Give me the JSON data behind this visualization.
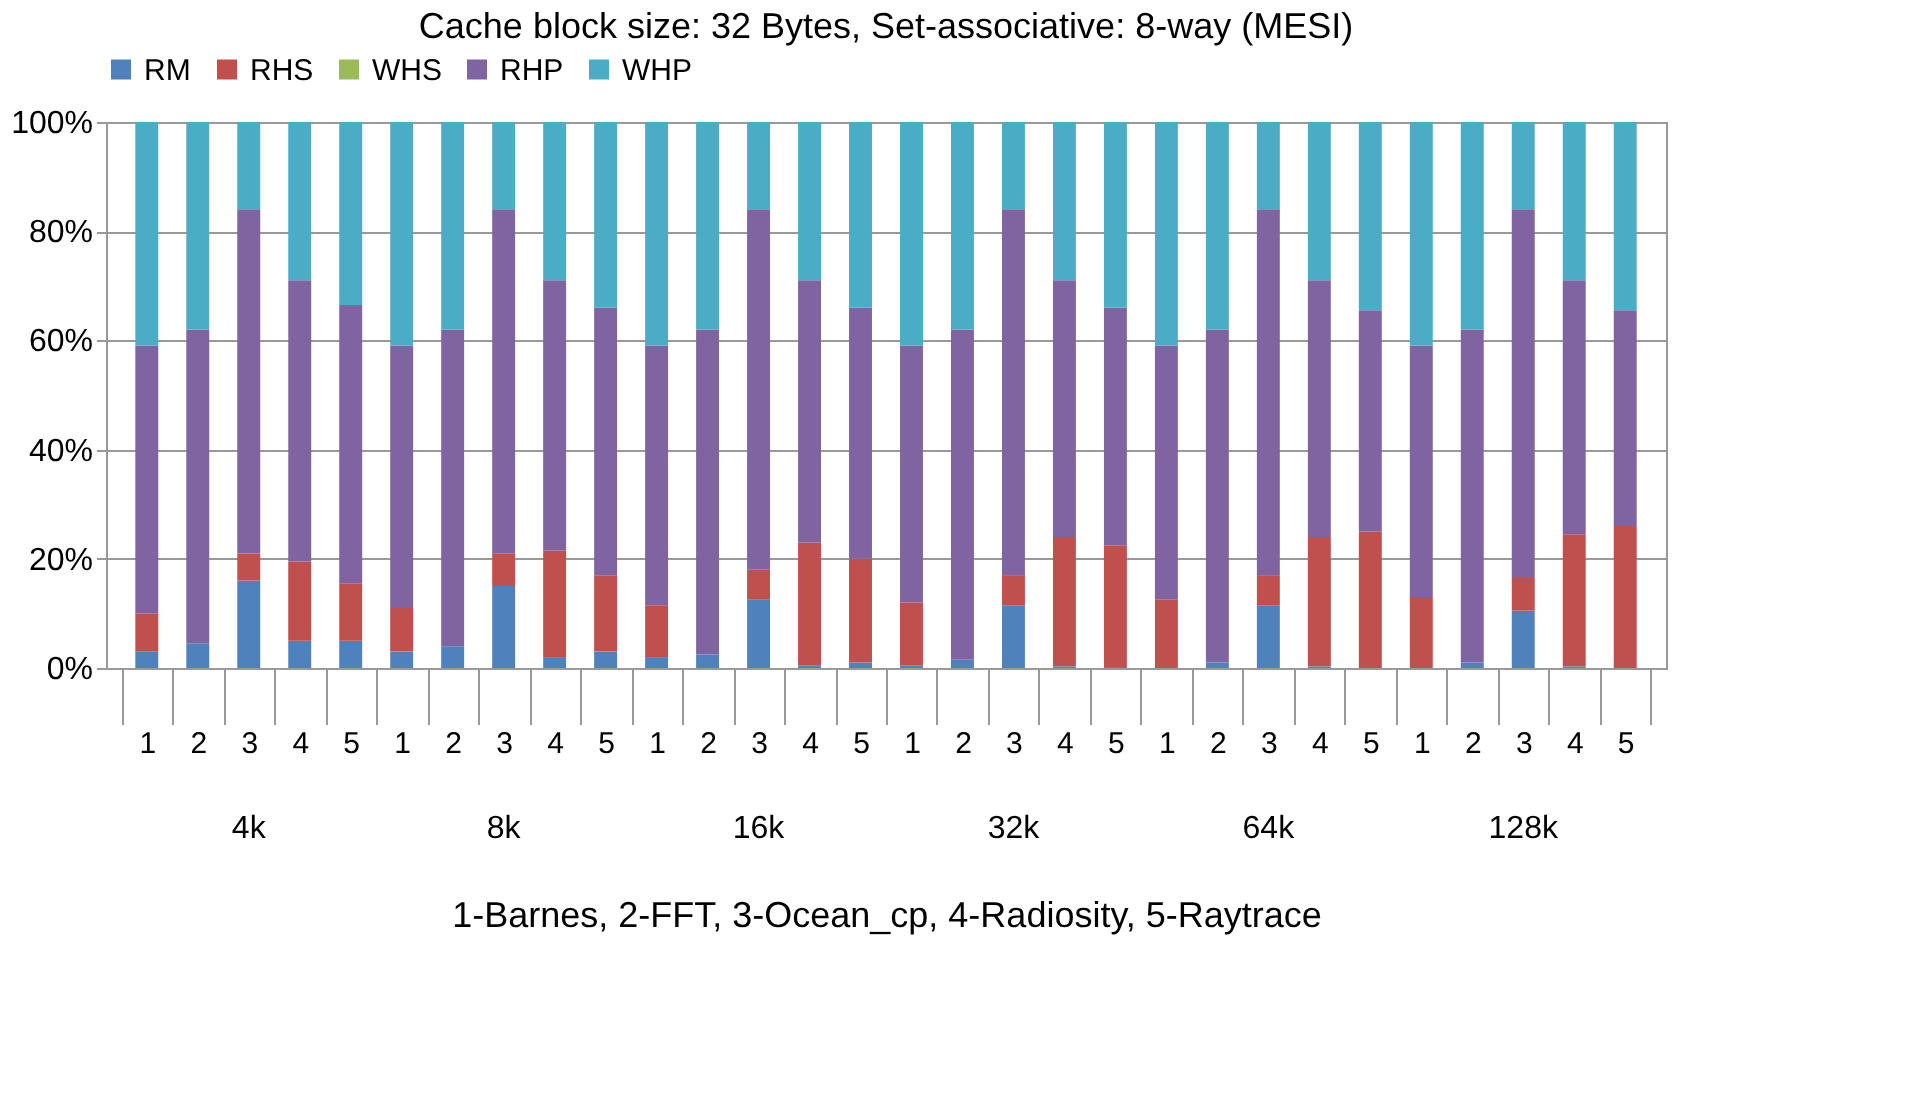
{
  "chart_data": {
    "type": "bar",
    "stacked": true,
    "title": "Cache block size: 32 Bytes, Set-associative: 8-way (MESI)",
    "xlabel": "1-Barnes, 2-FFT, 3-Ocean_cp, 4-Radiosity, 5-Raytrace",
    "categories": [
      "1",
      "2",
      "3",
      "4",
      "5",
      "1",
      "2",
      "3",
      "4",
      "5",
      "1",
      "2",
      "3",
      "4",
      "5",
      "1",
      "2",
      "3",
      "4",
      "5",
      "1",
      "2",
      "3",
      "4",
      "5",
      "1",
      "2",
      "3",
      "4",
      "5"
    ],
    "annotations": [
      "4k",
      "8k",
      "16k",
      "32k",
      "64k",
      "128k"
    ],
    "series": [
      {
        "name": "RM",
        "color": "#4f81bd",
        "values": [
          3,
          4.5,
          16,
          5,
          5,
          3,
          4,
          15,
          2,
          3,
          2,
          2.5,
          12.5,
          0.5,
          1,
          0.5,
          1.5,
          11.5,
          0.3,
          0.2,
          0,
          1,
          11.5,
          0.3,
          0,
          0,
          1,
          10.5,
          0.3,
          0
        ]
      },
      {
        "name": "RHS",
        "color": "#c0504d",
        "values": [
          7,
          0,
          5,
          14.5,
          10.5,
          8,
          0,
          6,
          19.5,
          14,
          9.5,
          0,
          5.5,
          22.5,
          19,
          11.5,
          0,
          5.5,
          23.7,
          22.3,
          12.5,
          0,
          5.5,
          23.7,
          25,
          13,
          0,
          6,
          24.2,
          26
        ]
      },
      {
        "name": "WHS",
        "color": "#9bbb59",
        "values": [
          0,
          0,
          0,
          0,
          0,
          0,
          0,
          0,
          0,
          0,
          0,
          0,
          0,
          0,
          0,
          0,
          0,
          0,
          0,
          0,
          0,
          0,
          0,
          0,
          0,
          0,
          0,
          0,
          0,
          0
        ]
      },
      {
        "name": "RHP",
        "color": "#8064a2",
        "values": [
          49,
          57.5,
          63,
          51.5,
          51,
          48,
          58,
          63,
          49.5,
          49,
          47.5,
          59.5,
          66,
          48,
          46,
          47,
          60.5,
          67,
          47,
          43.5,
          46.5,
          61,
          67,
          47,
          40.5,
          46,
          61,
          67.5,
          46.5,
          39.5
        ]
      },
      {
        "name": "WHP",
        "color": "#4bacc6",
        "values": [
          41,
          38,
          16,
          29,
          33.5,
          41,
          38,
          16,
          29,
          34,
          41,
          38,
          16,
          29,
          34,
          41,
          38,
          16,
          29,
          34,
          41,
          38,
          16,
          29,
          34.5,
          41,
          38,
          16,
          29,
          34.5
        ]
      }
    ],
    "ylim": [
      0,
      100
    ],
    "yticks": [
      {
        "value": 0,
        "label": "0%"
      },
      {
        "value": 20,
        "label": "20%"
      },
      {
        "value": 40,
        "label": "40%"
      },
      {
        "value": 60,
        "label": "60%"
      },
      {
        "value": 80,
        "label": "80%"
      },
      {
        "value": 100,
        "label": "100%"
      }
    ],
    "grid": "y",
    "legend": "top"
  }
}
